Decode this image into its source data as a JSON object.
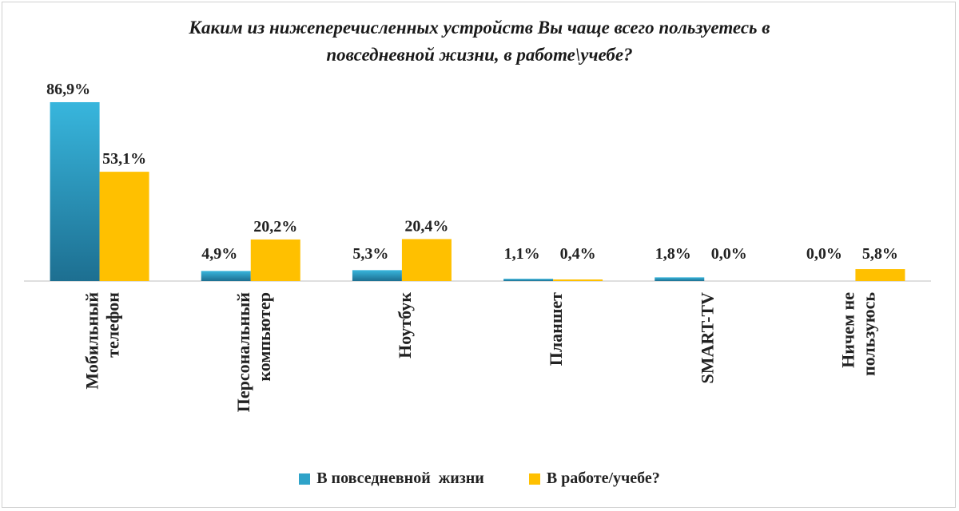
{
  "chart_data": {
    "type": "bar",
    "title": "Каким из нижеперечисленных устройств Вы чаще всего пользуетесь в повседневной жизни, в работе\\учебе?",
    "title_lines": [
      "Каким из нижеперечисленных устройств Вы чаще всего пользуетесь в",
      "повседневной жизни, в работе\\учебе?"
    ],
    "categories": [
      [
        "Мобильный",
        "телефон"
      ],
      [
        "Персональный",
        "компьютер"
      ],
      [
        "Ноутбук"
      ],
      [
        "Планшет"
      ],
      [
        "SMART-TV"
      ],
      [
        "Ничем не",
        "пользуюсь"
      ]
    ],
    "series": [
      {
        "name": "В повседневной  жизни",
        "color": "#2fa3c9",
        "values": [
          86.9,
          4.9,
          5.3,
          1.1,
          1.8,
          0.0
        ],
        "labels": [
          "86,9%",
          "4,9%",
          "5,3%",
          "1,1%",
          "1,8%",
          "0,0%"
        ]
      },
      {
        "name": "В работе/учебе?",
        "color": "#ffc000",
        "values": [
          53.1,
          20.2,
          20.4,
          0.4,
          0.0,
          5.8
        ],
        "labels": [
          "53,1%",
          "20,2%",
          "20,4%",
          "0,4%",
          "0,0%",
          "5,8%"
        ]
      }
    ],
    "ylim": [
      0,
      90
    ],
    "grid": false,
    "legend_position": "bottom"
  }
}
